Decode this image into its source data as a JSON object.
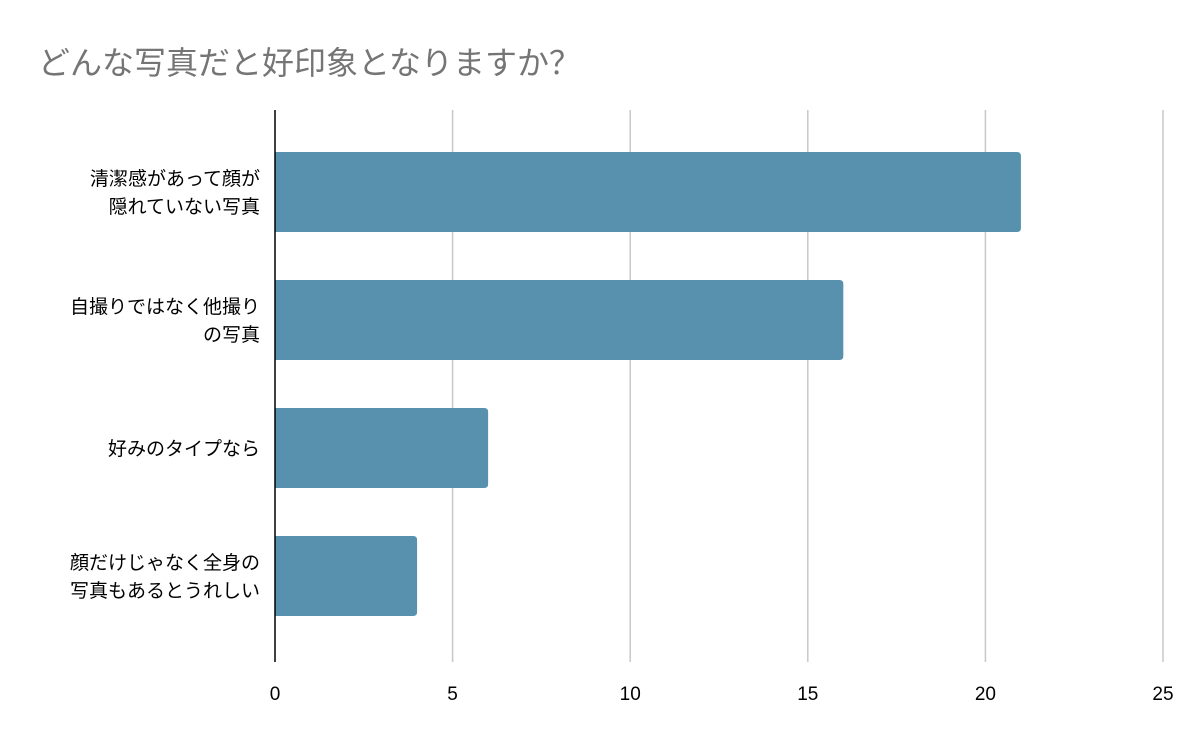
{
  "chart_data": {
    "type": "bar",
    "orientation": "horizontal",
    "title": "どんな写真だと好印象となりますか？",
    "categories": [
      [
        "清潔感があって顔が",
        "隠れていない写真"
      ],
      [
        "自撮りではなく他撮り",
        "の写真"
      ],
      [
        "好みのタイプなら"
      ],
      [
        "顔だけじゃなく全身の",
        "写真もあるとうれしい"
      ]
    ],
    "values": [
      21,
      16,
      6,
      4
    ],
    "xlim": [
      0,
      25
    ],
    "xticks": [
      0,
      5,
      10,
      15,
      20,
      25
    ],
    "grid": true,
    "legend": "none",
    "bar_color": "#5891ae",
    "grid_color": "#c8c8c8",
    "axis_color": "#000000"
  }
}
